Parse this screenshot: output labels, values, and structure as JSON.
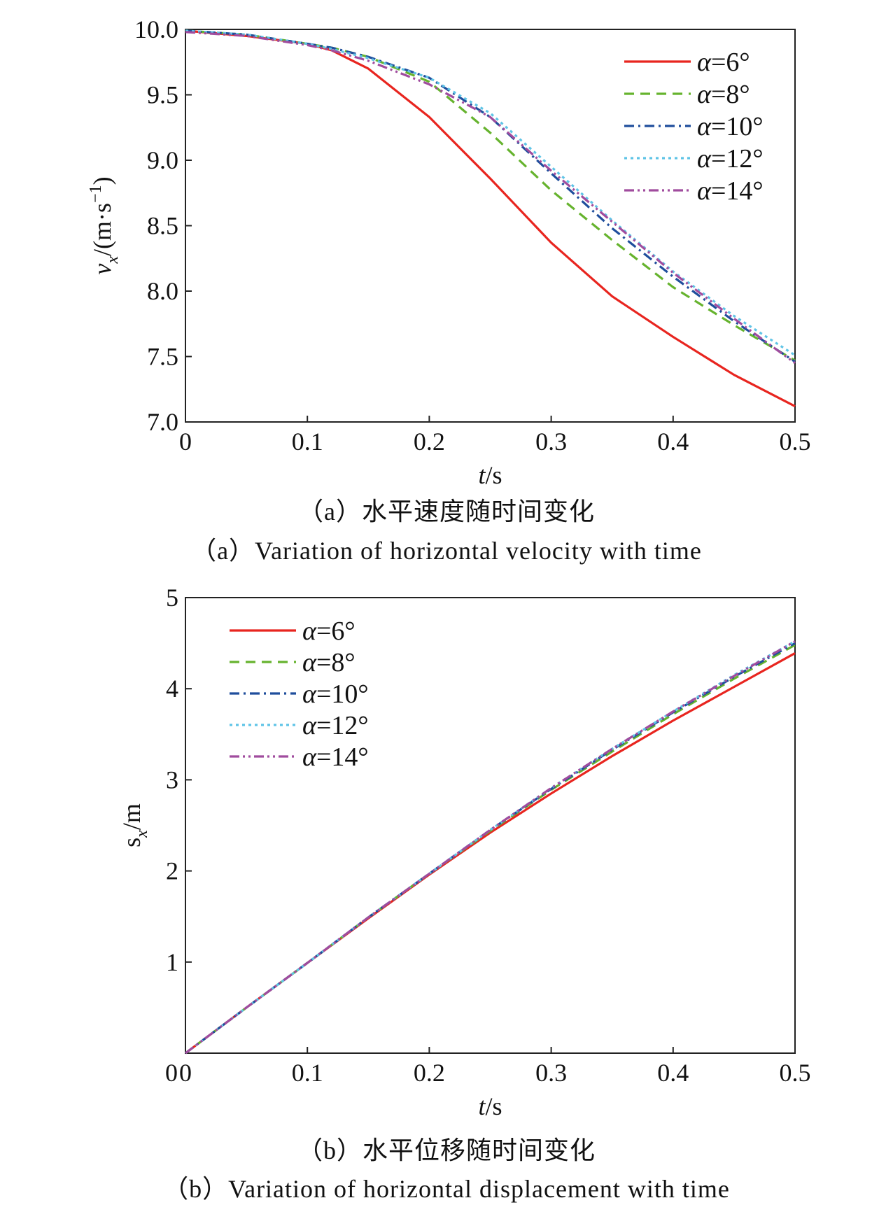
{
  "colors": {
    "a6": "#e8251f",
    "a8": "#66b32e",
    "a10": "#1f4e9c",
    "a12": "#5fc4e6",
    "a14": "#a04c9e"
  },
  "chart_data": [
    {
      "type": "line",
      "caption_cn": "（a）水平速度随时间变化",
      "caption_en": "（a）Variation of horizontal velocity with time",
      "xlabel_var": "t",
      "xlabel_unit": "/s",
      "ylabel_var": "v",
      "ylabel_sub": "x",
      "ylabel_unit": "/(m·s",
      "ylabel_exp": "−1",
      "ylabel_close": ")",
      "xlim": [
        0,
        0.5
      ],
      "ylim": [
        7.0,
        10.0
      ],
      "xticks": [
        "0",
        "0.1",
        "0.2",
        "0.3",
        "0.4",
        "0.5"
      ],
      "yticks": [
        "7.0",
        "7.5",
        "8.0",
        "8.5",
        "9.0",
        "9.5",
        "10.0"
      ],
      "legend_position": "top-right",
      "x": [
        0,
        0.05,
        0.1,
        0.12,
        0.15,
        0.2,
        0.25,
        0.3,
        0.35,
        0.4,
        0.45,
        0.5
      ],
      "series": [
        {
          "name": "α=6°",
          "color": "#e8251f",
          "dash": "solid",
          "values": [
            9.99,
            9.95,
            9.89,
            9.84,
            9.7,
            9.33,
            8.86,
            8.37,
            7.96,
            7.65,
            7.36,
            7.12
          ]
        },
        {
          "name": "α=8°",
          "color": "#66b32e",
          "dash": "dash",
          "values": [
            9.99,
            9.96,
            9.89,
            9.86,
            9.79,
            9.6,
            9.21,
            8.77,
            8.39,
            8.03,
            7.74,
            7.47
          ]
        },
        {
          "name": "α=10°",
          "color": "#1f4e9c",
          "dash": "dashdot",
          "values": [
            9.99,
            9.96,
            9.89,
            9.86,
            9.79,
            9.63,
            9.33,
            8.9,
            8.48,
            8.11,
            7.77,
            7.46
          ]
        },
        {
          "name": "α=12°",
          "color": "#5fc4e6",
          "dash": "dot",
          "values": [
            9.99,
            9.96,
            9.89,
            9.85,
            9.78,
            9.63,
            9.36,
            8.95,
            8.54,
            8.15,
            7.81,
            7.51
          ]
        },
        {
          "name": "α=14°",
          "color": "#a04c9e",
          "dash": "dashdotdot",
          "values": [
            9.98,
            9.95,
            9.88,
            9.84,
            9.76,
            9.58,
            9.33,
            8.92,
            8.53,
            8.14,
            7.79,
            7.45
          ]
        }
      ]
    },
    {
      "type": "line",
      "caption_cn": "（b）水平位移随时间变化",
      "caption_en": "（b）Variation of horizontal displacement with time",
      "xlabel_var": "t",
      "xlabel_unit": "/s",
      "ylabel_var": "s",
      "ylabel_sub": "x",
      "ylabel_unit": "/m",
      "xlim": [
        0,
        0.5
      ],
      "ylim": [
        0,
        5
      ],
      "xticks": [
        "0",
        "0.1",
        "0.2",
        "0.3",
        "0.4",
        "0.5"
      ],
      "yticks": [
        "1",
        "2",
        "3",
        "4",
        "5"
      ],
      "legend_position": "top-left",
      "x": [
        0,
        0.05,
        0.1,
        0.15,
        0.2,
        0.25,
        0.3,
        0.35,
        0.4,
        0.45,
        0.5
      ],
      "series": [
        {
          "name": "α=6°",
          "color": "#e8251f",
          "dash": "solid",
          "values": [
            0,
            0.5,
            0.99,
            1.48,
            1.96,
            2.42,
            2.85,
            3.26,
            3.65,
            4.02,
            4.39
          ]
        },
        {
          "name": "α=8°",
          "color": "#66b32e",
          "dash": "dash",
          "values": [
            0,
            0.5,
            0.99,
            1.49,
            1.97,
            2.44,
            2.89,
            3.31,
            3.72,
            4.11,
            4.48
          ]
        },
        {
          "name": "α=10°",
          "color": "#1f4e9c",
          "dash": "dashdot",
          "values": [
            0,
            0.5,
            0.99,
            1.49,
            1.97,
            2.45,
            2.9,
            3.33,
            3.74,
            4.13,
            4.5
          ]
        },
        {
          "name": "α=12°",
          "color": "#5fc4e6",
          "dash": "dot",
          "values": [
            0,
            0.5,
            0.99,
            1.49,
            1.97,
            2.45,
            2.91,
            3.34,
            3.75,
            4.15,
            4.52
          ]
        },
        {
          "name": "α=14°",
          "color": "#a04c9e",
          "dash": "dashdotdot",
          "values": [
            0,
            0.5,
            0.99,
            1.49,
            1.97,
            2.45,
            2.91,
            3.34,
            3.75,
            4.14,
            4.52
          ]
        }
      ]
    }
  ]
}
